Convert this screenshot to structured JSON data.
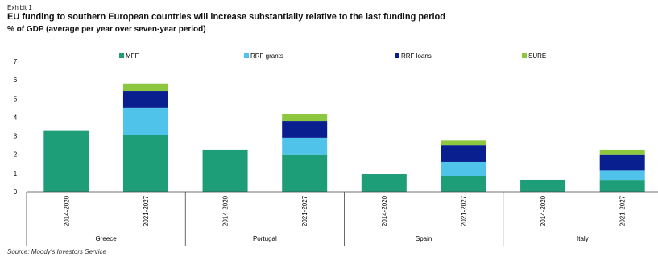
{
  "exhibit_label": "Exhibit 1",
  "title": "EU funding to southern European countries will increase substantially relative to the last funding period",
  "subtitle": "% of GDP (average per year over seven-year period)",
  "source": "Source: Moody's Investors Service",
  "chart_data": {
    "type": "bar",
    "stacked": true,
    "legend_position": "top",
    "grid": false,
    "ylim": [
      0,
      7
    ],
    "y_ticks": [
      0,
      1,
      2,
      3,
      4,
      5,
      6,
      7
    ],
    "groups": [
      "Greece",
      "Portugal",
      "Spain",
      "Italy"
    ],
    "periods": [
      "2014-2020",
      "2021-2027"
    ],
    "categories": [
      {
        "group": "Greece",
        "period": "2014-2020"
      },
      {
        "group": "Greece",
        "period": "2021-2027"
      },
      {
        "group": "Portugal",
        "period": "2014-2020"
      },
      {
        "group": "Portugal",
        "period": "2021-2027"
      },
      {
        "group": "Spain",
        "period": "2014-2020"
      },
      {
        "group": "Spain",
        "period": "2021-2027"
      },
      {
        "group": "Italy",
        "period": "2014-2020"
      },
      {
        "group": "Italy",
        "period": "2021-2027"
      }
    ],
    "series": [
      {
        "name": "MFF",
        "color": "#1e9e78",
        "values": [
          3.3,
          3.05,
          2.25,
          2.0,
          0.95,
          0.85,
          0.65,
          0.6
        ]
      },
      {
        "name": "RRF grants",
        "color": "#4fc3ea",
        "values": [
          0,
          1.45,
          0,
          0.9,
          0,
          0.75,
          0,
          0.55
        ]
      },
      {
        "name": "RRF loans",
        "color": "#0a1f8f",
        "values": [
          0,
          0.9,
          0,
          0.9,
          0,
          0.9,
          0,
          0.85
        ]
      },
      {
        "name": "SURE",
        "color": "#8dc63f",
        "values": [
          0,
          0.4,
          0,
          0.35,
          0,
          0.25,
          0,
          0.25
        ]
      }
    ]
  }
}
